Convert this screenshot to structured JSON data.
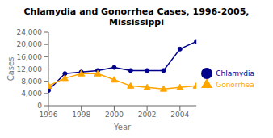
{
  "chart_data": {
    "type": "line",
    "title": "Chlamydia and Gonorrhea Cases, 1996-2005,\nMississippi",
    "xlabel": "Year",
    "ylabel": "Cases",
    "x": [
      1996,
      1997,
      1998,
      1999,
      2000,
      2001,
      2002,
      2003,
      2004,
      2005
    ],
    "series": [
      {
        "name": "Chlamydia",
        "color": "#00008B",
        "marker": "circle",
        "values": [
          5000,
          10500,
          11000,
          11500,
          12500,
          11500,
          11500,
          11500,
          18500,
          21000
        ]
      },
      {
        "name": "Gonorrhea",
        "color": "#FFA500",
        "marker": "triangle",
        "values": [
          6500,
          9000,
          10500,
          10500,
          8500,
          6500,
          6000,
          5500,
          6000,
          6500
        ]
      }
    ],
    "xlim": [
      1996,
      2005
    ],
    "xticks": [
      1996,
      1998,
      2000,
      2002,
      2004
    ],
    "ylim": [
      0,
      24000
    ],
    "yticks": [
      0,
      {
        "value": 4000,
        "label": "4,000"
      },
      {
        "value": 8000,
        "label": "8,000"
      },
      {
        "value": 12000,
        "label": "12,000"
      },
      {
        "value": 16000,
        "label": "16,000"
      },
      {
        "value": 20000,
        "label": "20,000"
      },
      {
        "value": 24000,
        "label": "24,000"
      }
    ],
    "grid": false,
    "legend": "center right"
  }
}
